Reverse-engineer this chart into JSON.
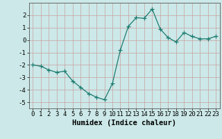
{
  "x": [
    0,
    1,
    2,
    3,
    4,
    5,
    6,
    7,
    8,
    9,
    10,
    11,
    12,
    13,
    14,
    15,
    16,
    17,
    18,
    19,
    20,
    21,
    22,
    23
  ],
  "y": [
    -2.0,
    -2.1,
    -2.4,
    -2.6,
    -2.5,
    -3.3,
    -3.8,
    -4.3,
    -4.6,
    -4.8,
    -3.5,
    -0.8,
    1.1,
    1.8,
    1.75,
    2.5,
    0.9,
    0.2,
    -0.15,
    0.6,
    0.3,
    0.1,
    0.1,
    0.3
  ],
  "line_color": "#1a7a6e",
  "marker": "+",
  "marker_color": "#1a7a6e",
  "bg_color": "#cce8e8",
  "grid_color": "#c8a0a0",
  "xlabel": "Humidex (Indice chaleur)",
  "xlim": [
    -0.5,
    23.5
  ],
  "ylim": [
    -5.5,
    3.0
  ],
  "yticks": [
    -5,
    -4,
    -3,
    -2,
    -1,
    0,
    1,
    2
  ],
  "xticks": [
    0,
    1,
    2,
    3,
    4,
    5,
    6,
    7,
    8,
    9,
    10,
    11,
    12,
    13,
    14,
    15,
    16,
    17,
    18,
    19,
    20,
    21,
    22,
    23
  ],
  "font_family": "monospace",
  "label_fontsize": 7.5,
  "tick_fontsize": 6.5
}
